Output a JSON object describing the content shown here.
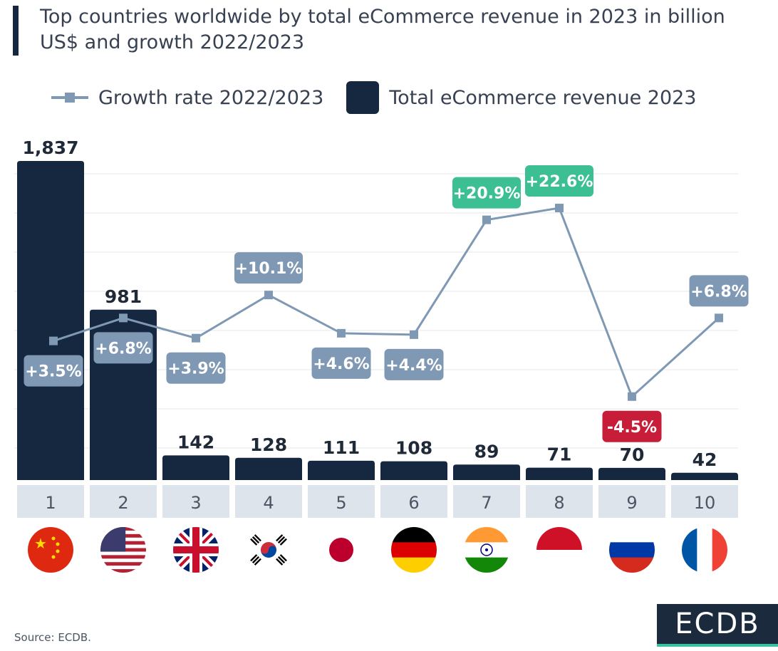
{
  "title": "Top countries worldwide by total eCommerce revenue in 2023 in billion US$ and growth 2022/2023",
  "legend": {
    "growth_label": "Growth rate 2022/2023",
    "revenue_label": "Total eCommerce revenue 2023"
  },
  "source": "Source: ECDB.",
  "logo": "ECDB",
  "colors": {
    "bar": "#162840",
    "line": "#7f98b4",
    "label_default": "#7f98b4",
    "label_high": "#3cbf93",
    "label_negative": "#c81d38",
    "rank_band": "#dde4ec"
  },
  "chart_data": {
    "type": "bar",
    "categories": [
      "1",
      "2",
      "3",
      "4",
      "5",
      "6",
      "7",
      "8",
      "9",
      "10"
    ],
    "countries": [
      "China",
      "United States",
      "United Kingdom",
      "South Korea",
      "Japan",
      "Germany",
      "India",
      "Indonesia",
      "Russia",
      "France"
    ],
    "flags": [
      "china-flag",
      "usa-flag",
      "uk-flag",
      "south-korea-flag",
      "japan-flag",
      "germany-flag",
      "india-flag",
      "indonesia-flag",
      "russia-flag",
      "france-flag"
    ],
    "series": [
      {
        "name": "Total eCommerce revenue 2023",
        "type": "bar",
        "values": [
          1837,
          981,
          142,
          128,
          111,
          108,
          89,
          71,
          70,
          42
        ],
        "labels": [
          "1,837",
          "981",
          "142",
          "128",
          "111",
          "108",
          "89",
          "71",
          "70",
          "42"
        ]
      },
      {
        "name": "Growth rate 2022/2023",
        "type": "line",
        "values": [
          3.5,
          6.8,
          3.9,
          10.1,
          4.6,
          4.4,
          20.9,
          22.6,
          -4.5,
          6.8
        ],
        "labels": [
          "+3.5%",
          "+6.8%",
          "+3.9%",
          "+10.1%",
          "+4.6%",
          "+4.4%",
          "+20.9%",
          "+22.6%",
          "-4.5%",
          "+6.8%"
        ],
        "label_styles": [
          "default",
          "default",
          "default",
          "default",
          "default",
          "default",
          "high",
          "high",
          "negative",
          "default"
        ]
      }
    ],
    "title": "Top countries worldwide by total eCommerce revenue in 2023 in billion US$ and growth 2022/2023",
    "ylim_revenue": [
      0,
      1837
    ],
    "ylim_growth": [
      -10,
      30
    ],
    "grid": true
  }
}
